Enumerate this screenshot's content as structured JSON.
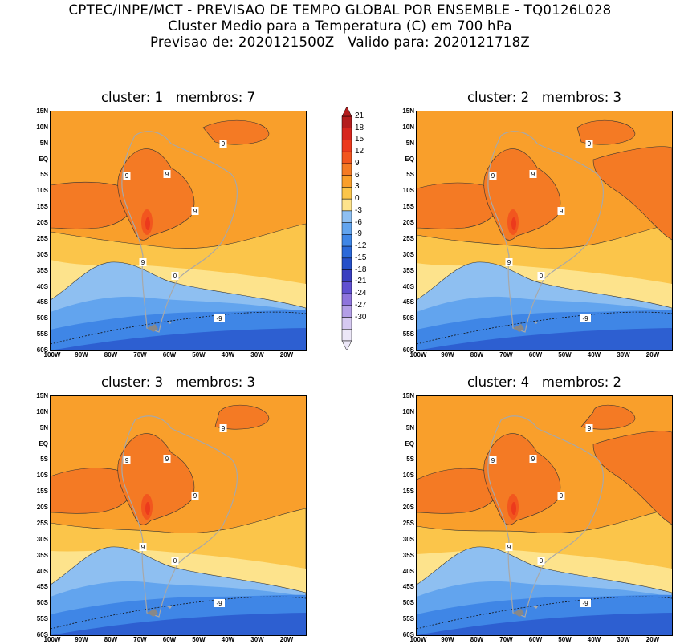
{
  "title": {
    "line1": "CPTEC/INPE/MCT - PREVISAO DE TEMPO GLOBAL POR ENSEMBLE - TQ0126L028",
    "line2": "Cluster Medio para a Temperatura (C) em 700 hPa",
    "line3": "Previsao de: 2020121500Z   Valido para: 2020121718Z"
  },
  "panels": [
    {
      "title": "cluster: 1   membros: 7"
    },
    {
      "title": "cluster: 2   membros: 3"
    },
    {
      "title": "cluster: 3   membros: 3"
    },
    {
      "title": "cluster: 4   membros: 2"
    }
  ],
  "lat_labels": [
    "15N",
    "10N",
    "5N",
    "EQ",
    "5S",
    "10S",
    "15S",
    "20S",
    "25S",
    "30S",
    "35S",
    "40S",
    "45S",
    "50S",
    "55S",
    "60S"
  ],
  "lon_labels": [
    "100W",
    "90W",
    "80W",
    "70W",
    "60W",
    "50W",
    "40W",
    "30W",
    "20W"
  ],
  "contour_labels": {
    "nine": "9",
    "zero": "0",
    "minus_nine": "-9"
  },
  "colorbar": {
    "levels": [
      "21",
      "18",
      "15",
      "12",
      "9",
      "6",
      "3",
      "0",
      "-3",
      "-6",
      "-9",
      "-12",
      "-15",
      "-18",
      "-21",
      "-24",
      "-27",
      "-30"
    ],
    "colors": [
      "#b41e1e",
      "#d7261e",
      "#ec3a1c",
      "#f2561e",
      "#f47a24",
      "#f99f2b",
      "#fbc54a",
      "#fde38c",
      "#8ebff1",
      "#62a4ee",
      "#3f86e6",
      "#2b69d9",
      "#2650c9",
      "#3a3fc0",
      "#6050d0",
      "#8e74dc",
      "#b39ee6",
      "#d6c9f1",
      "#ece7f7"
    ],
    "low_color": "#ece7f7",
    "high_color": "#b41e1e"
  }
}
